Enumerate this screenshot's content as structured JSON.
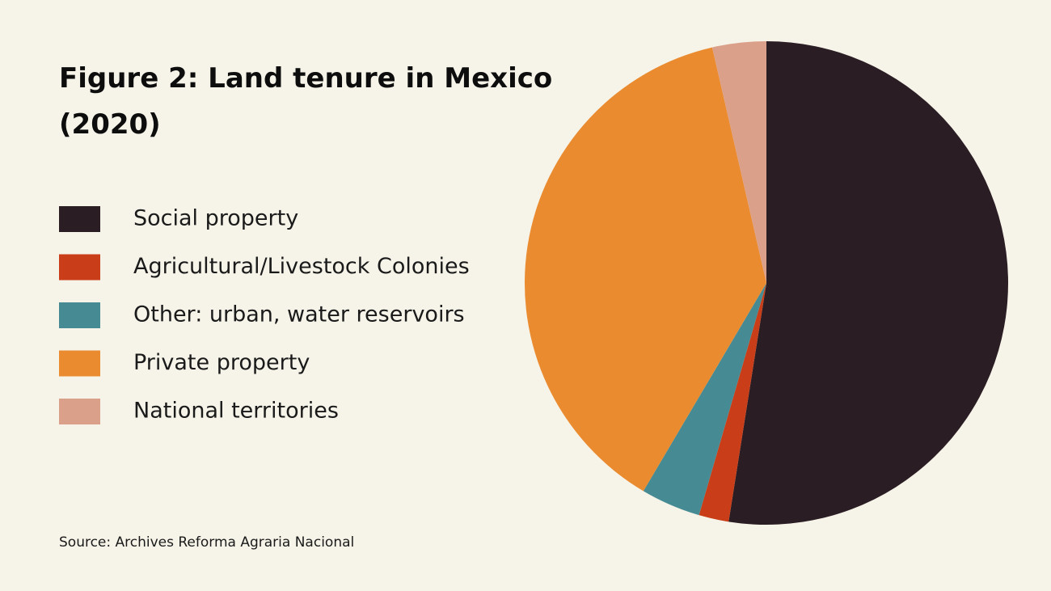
{
  "chart_data": {
    "type": "pie",
    "title": "Figure 2: Land tenure in Mexico (2020)",
    "source": "Source: Archives Reforma Agraria Nacional",
    "categories": [
      "Social property",
      "Agricultural/Livestock Colonies",
      "Other: urban, water reservoirs",
      "Private property",
      "National territories"
    ],
    "values": [
      52.5,
      2,
      4,
      37.9,
      3.6
    ],
    "colors": [
      "#2b1d24",
      "#c93e18",
      "#468b93",
      "#ea8b30",
      "#dba08a"
    ]
  }
}
